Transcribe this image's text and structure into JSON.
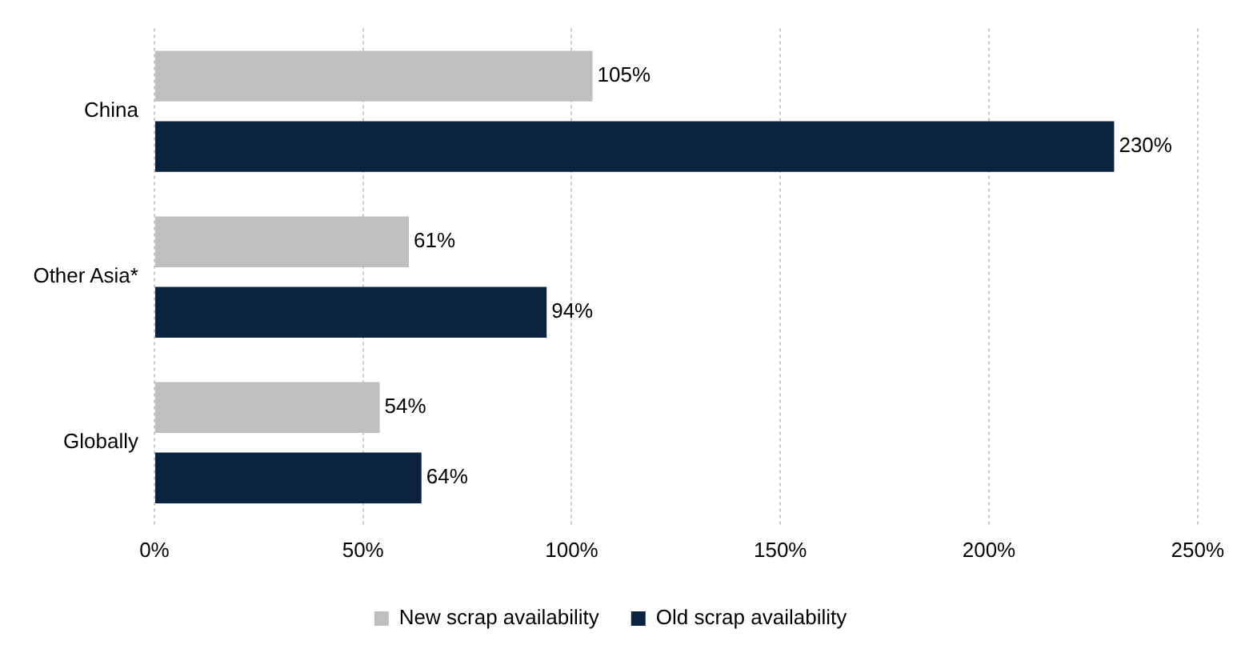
{
  "chart_data": {
    "type": "bar",
    "orientation": "horizontal",
    "categories": [
      "China",
      "Other Asia*",
      "Globally"
    ],
    "series": [
      {
        "name": "New scrap availability",
        "color": "#bfbfbf",
        "values": [
          105,
          61,
          54
        ],
        "value_labels": [
          "105%",
          "61%",
          "54%"
        ]
      },
      {
        "name": "Old scrap availability",
        "color": "#0c2340",
        "values": [
          230,
          94,
          64
        ],
        "value_labels": [
          "230%",
          "94%",
          "64%"
        ]
      }
    ],
    "xlim": [
      0,
      250
    ],
    "xticks": [
      {
        "value": 0,
        "label": "0%"
      },
      {
        "value": 50,
        "label": "50%"
      },
      {
        "value": 100,
        "label": "100%"
      },
      {
        "value": 150,
        "label": "150%"
      },
      {
        "value": 200,
        "label": "200%"
      },
      {
        "value": 250,
        "label": "250%"
      }
    ],
    "grid": "x",
    "legend": "bottom"
  }
}
